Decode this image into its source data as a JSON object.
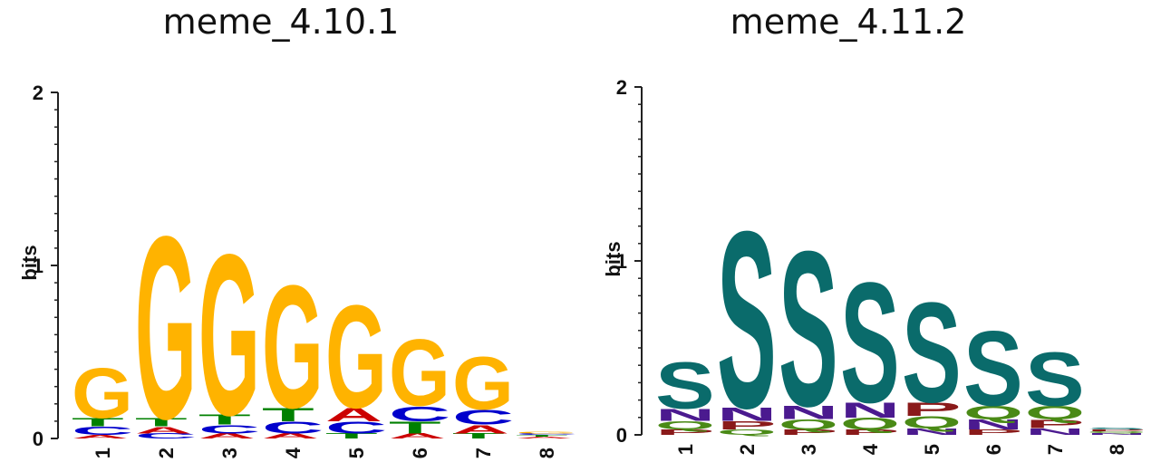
{
  "colors": {
    "A": "#cc0000",
    "C": "#0000cc",
    "G": "#ffb300",
    "T": "#008000",
    "S": "#0a6b6b",
    "N": "#4b1a8f",
    "Q": "#4a8a16",
    "P": "#8a1a1a"
  },
  "chart_data": [
    {
      "type": "sequence-logo",
      "title": "meme_4.10.1",
      "xlabel": "",
      "ylabel": "bits",
      "ylim": [
        0,
        2
      ],
      "yticks": [
        "0",
        "1",
        "2"
      ],
      "categories": [
        "1",
        "2",
        "3",
        "4",
        "5",
        "6",
        "7",
        "8"
      ],
      "positions": [
        [
          {
            "letter": "A",
            "bits": 0.02
          },
          {
            "letter": "C",
            "bits": 0.05
          },
          {
            "letter": "T",
            "bits": 0.05
          },
          {
            "letter": "G",
            "bits": 0.3
          }
        ],
        [
          {
            "letter": "C",
            "bits": 0.03
          },
          {
            "letter": "A",
            "bits": 0.04
          },
          {
            "letter": "T",
            "bits": 0.05
          },
          {
            "letter": "G",
            "bits": 1.1
          }
        ],
        [
          {
            "letter": "A",
            "bits": 0.03
          },
          {
            "letter": "C",
            "bits": 0.05
          },
          {
            "letter": "T",
            "bits": 0.06
          },
          {
            "letter": "G",
            "bits": 0.97
          }
        ],
        [
          {
            "letter": "A",
            "bits": 0.03
          },
          {
            "letter": "C",
            "bits": 0.07
          },
          {
            "letter": "T",
            "bits": 0.08
          },
          {
            "letter": "G",
            "bits": 0.74
          }
        ],
        [
          {
            "letter": "T",
            "bits": 0.03
          },
          {
            "letter": "C",
            "bits": 0.07
          },
          {
            "letter": "A",
            "bits": 0.08
          },
          {
            "letter": "G",
            "bits": 0.62
          }
        ],
        [
          {
            "letter": "A",
            "bits": 0.03
          },
          {
            "letter": "T",
            "bits": 0.07
          },
          {
            "letter": "C",
            "bits": 0.09
          },
          {
            "letter": "G",
            "bits": 0.4
          }
        ],
        [
          {
            "letter": "T",
            "bits": 0.03
          },
          {
            "letter": "A",
            "bits": 0.05
          },
          {
            "letter": "C",
            "bits": 0.09
          },
          {
            "letter": "G",
            "bits": 0.32
          }
        ],
        [
          {
            "letter": "A",
            "bits": 0.01
          },
          {
            "letter": "T",
            "bits": 0.01
          },
          {
            "letter": "C",
            "bits": 0.01
          },
          {
            "letter": "G",
            "bits": 0.01
          }
        ]
      ]
    },
    {
      "type": "sequence-logo",
      "title": "meme_4.11.2",
      "xlabel": "",
      "ylabel": "bits",
      "ylim": [
        0,
        2
      ],
      "yticks": [
        "0",
        "1",
        "2"
      ],
      "categories": [
        "1",
        "2",
        "3",
        "4",
        "5",
        "6",
        "7",
        "8"
      ],
      "positions": [
        [
          {
            "letter": "P",
            "bits": 0.03
          },
          {
            "letter": "Q",
            "bits": 0.05
          },
          {
            "letter": "N",
            "bits": 0.07
          },
          {
            "letter": "S",
            "bits": 0.28
          }
        ],
        [
          {
            "letter": "Q",
            "bits": 0.03
          },
          {
            "letter": "P",
            "bits": 0.05
          },
          {
            "letter": "N",
            "bits": 0.08
          },
          {
            "letter": "S",
            "bits": 1.06
          }
        ],
        [
          {
            "letter": "P",
            "bits": 0.03
          },
          {
            "letter": "Q",
            "bits": 0.06
          },
          {
            "letter": "N",
            "bits": 0.08
          },
          {
            "letter": "S",
            "bits": 0.93
          }
        ],
        [
          {
            "letter": "P",
            "bits": 0.03
          },
          {
            "letter": "Q",
            "bits": 0.07
          },
          {
            "letter": "N",
            "bits": 0.09
          },
          {
            "letter": "S",
            "bits": 0.72
          }
        ],
        [
          {
            "letter": "N",
            "bits": 0.04
          },
          {
            "letter": "Q",
            "bits": 0.07
          },
          {
            "letter": "P",
            "bits": 0.08
          },
          {
            "letter": "S",
            "bits": 0.6
          }
        ],
        [
          {
            "letter": "P",
            "bits": 0.03
          },
          {
            "letter": "N",
            "bits": 0.06
          },
          {
            "letter": "Q",
            "bits": 0.08
          },
          {
            "letter": "S",
            "bits": 0.45
          }
        ],
        [
          {
            "letter": "N",
            "bits": 0.04
          },
          {
            "letter": "P",
            "bits": 0.05
          },
          {
            "letter": "Q",
            "bits": 0.08
          },
          {
            "letter": "S",
            "bits": 0.32
          }
        ],
        [
          {
            "letter": "N",
            "bits": 0.01
          },
          {
            "letter": "Q",
            "bits": 0.01
          },
          {
            "letter": "P",
            "bits": 0.01
          },
          {
            "letter": "S",
            "bits": 0.01
          }
        ]
      ]
    }
  ]
}
